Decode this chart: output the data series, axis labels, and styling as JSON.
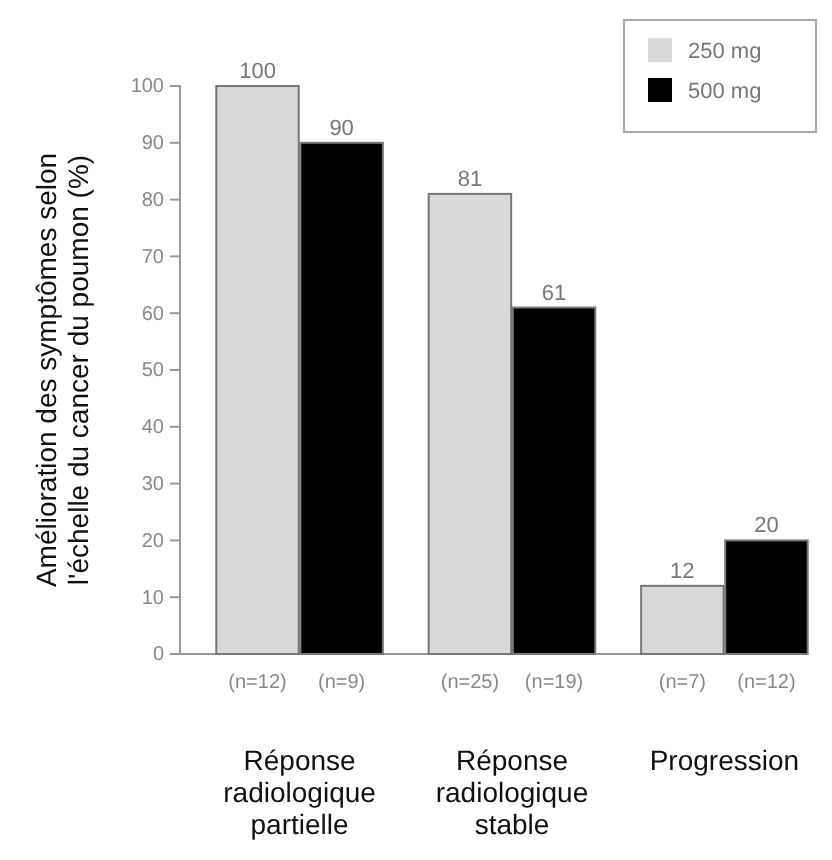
{
  "chart_data": {
    "type": "bar",
    "ylabel": "Amélioration des symptômes selon l'échelle du cancer du poumon (%)",
    "categories": [
      "Réponse radiologique partielle",
      "Réponse radiologique stable",
      "Progression"
    ],
    "series": [
      {
        "name": "250 mg",
        "color": "#d9d9d9",
        "values": [
          100,
          81,
          12
        ]
      },
      {
        "name": "500 mg",
        "color": "#000000",
        "values": [
          90,
          61,
          20
        ]
      }
    ],
    "ylim": [
      0,
      100
    ],
    "yticks": [
      0,
      10,
      20,
      30,
      40,
      50,
      60,
      70,
      80,
      90,
      100
    ],
    "data_labels": true,
    "legend": "top right",
    "grid": false,
    "annotations": [
      "(n=12)",
      "(n=9)",
      "(n=25)",
      "(n=19)",
      "(n=7)",
      "(n=12)"
    ]
  }
}
